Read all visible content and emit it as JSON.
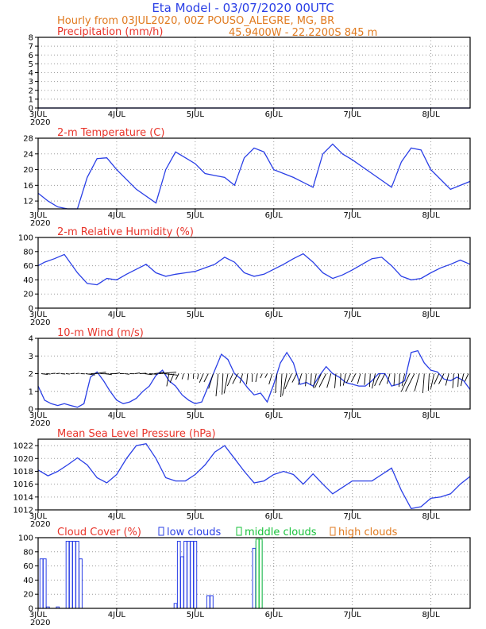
{
  "header": {
    "title": "Eta Model - 03/07/2020 00UTC",
    "subtitle": "Hourly from 03JUL2020, 00Z  POUSO_ALEGRE, MG, BR",
    "location": "45.9400W - 22.2200S    845  m"
  },
  "colors": {
    "title": "#2a3fe6",
    "info": "#e07a1f",
    "panel_title": "#e8342a",
    "series": "#2a3fe6",
    "wind_barb": "#000000",
    "low_clouds": "#2a3fe6",
    "middle_clouds": "#17c23a",
    "high_clouds": "#e07a1f"
  },
  "x_axis": {
    "days": [
      "3JUL",
      "4JUL",
      "5JUL",
      "6JUL",
      "7JUL",
      "8JUL"
    ],
    "year_label": "2020",
    "range_hours": [
      0,
      132
    ]
  },
  "chart_data": [
    {
      "type": "line",
      "title": "Precipitation (mm/h)",
      "ylim": [
        0,
        8
      ],
      "yticks": [
        0,
        1,
        2,
        3,
        4,
        5,
        6,
        7,
        8
      ],
      "x": [
        0,
        132
      ],
      "values": [
        0,
        0
      ]
    },
    {
      "type": "line",
      "title": "2-m Temperature (C)",
      "ylim": [
        10,
        28
      ],
      "yticks": [
        12,
        16,
        20,
        24,
        28
      ],
      "x": [
        0,
        3,
        6,
        9,
        12,
        15,
        18,
        21,
        24,
        30,
        36,
        39,
        42,
        45,
        48,
        51,
        54,
        57,
        60,
        63,
        66,
        69,
        72,
        78,
        84,
        87,
        90,
        93,
        96,
        102,
        108,
        111,
        114,
        117,
        120,
        126,
        132
      ],
      "values": [
        14,
        12,
        10.5,
        10,
        10,
        18,
        22.8,
        23,
        20,
        15,
        11.5,
        20,
        24.5,
        23,
        21.5,
        19,
        18.5,
        18,
        16,
        23,
        25.5,
        24.5,
        20,
        18,
        15.5,
        24,
        26.5,
        24,
        22.5,
        19,
        15.5,
        22,
        25.5,
        25,
        20,
        15,
        17
      ]
    },
    {
      "type": "line",
      "title": "2-m Relative Humidity (%)",
      "ylim": [
        0,
        100
      ],
      "yticks": [
        0,
        20,
        40,
        60,
        80,
        100
      ],
      "x": [
        0,
        2,
        5,
        8,
        12,
        15,
        18,
        21,
        24,
        27,
        30,
        33,
        36,
        39,
        42,
        45,
        48,
        51,
        54,
        57,
        60,
        63,
        66,
        69,
        72,
        75,
        78,
        81,
        84,
        87,
        90,
        93,
        96,
        99,
        102,
        105,
        108,
        111,
        114,
        117,
        120,
        123,
        126,
        129,
        132
      ],
      "values": [
        60,
        65,
        70,
        76,
        50,
        35,
        33,
        42,
        40,
        48,
        55,
        62,
        50,
        45,
        48,
        50,
        52,
        57,
        62,
        72,
        65,
        50,
        45,
        48,
        55,
        62,
        70,
        77,
        65,
        50,
        42,
        47,
        54,
        62,
        70,
        72,
        60,
        45,
        40,
        42,
        50,
        57,
        62,
        68,
        62
      ]
    },
    {
      "type": "line",
      "title": "10-m Wind (m/s)",
      "ylim": [
        0,
        4
      ],
      "yticks": [
        0,
        1,
        2,
        3,
        4
      ],
      "x": [
        0,
        1,
        2,
        4,
        6,
        8,
        10,
        12,
        14,
        16,
        18,
        20,
        22,
        24,
        26,
        28,
        30,
        32,
        34,
        36,
        38,
        40,
        42,
        44,
        46,
        48,
        50,
        52,
        54,
        56,
        58,
        60,
        62,
        64,
        66,
        68,
        70,
        72,
        74,
        76,
        78,
        80,
        82,
        84,
        86,
        88,
        90,
        92,
        94,
        96,
        98,
        100,
        102,
        104,
        106,
        108,
        110,
        112,
        114,
        116,
        118,
        120,
        122,
        124,
        126,
        128,
        130,
        132
      ],
      "values": [
        1.3,
        0.9,
        0.5,
        0.3,
        0.2,
        0.3,
        0.2,
        0.1,
        0.3,
        1.8,
        2.1,
        1.6,
        1.0,
        0.5,
        0.3,
        0.4,
        0.6,
        1.0,
        1.3,
        1.9,
        2.2,
        1.6,
        1.3,
        0.8,
        0.5,
        0.3,
        0.4,
        1.3,
        2.2,
        3.1,
        2.8,
        2.0,
        1.7,
        1.2,
        0.8,
        0.9,
        0.4,
        1.4,
        2.6,
        3.2,
        2.6,
        1.4,
        1.5,
        1.3,
        1.9,
        2.4,
        2.0,
        1.8,
        1.5,
        1.4,
        1.3,
        1.3,
        1.6,
        2.0,
        2.0,
        1.3,
        1.4,
        1.6,
        3.2,
        3.3,
        2.6,
        2.2,
        2.1,
        1.7,
        1.6,
        1.8,
        1.6,
        1.1
      ]
    },
    {
      "type": "line",
      "title": "Mean Sea Level Pressure (hPa)",
      "ylim": [
        1012,
        1023
      ],
      "yticks": [
        1012,
        1014,
        1016,
        1018,
        1020,
        1022
      ],
      "x": [
        0,
        3,
        6,
        9,
        12,
        15,
        18,
        21,
        24,
        27,
        30,
        33,
        36,
        39,
        42,
        45,
        48,
        51,
        54,
        57,
        60,
        63,
        66,
        69,
        72,
        75,
        78,
        81,
        84,
        87,
        90,
        93,
        96,
        99,
        102,
        105,
        108,
        111,
        114,
        117,
        120,
        123,
        126,
        129,
        132
      ],
      "values": [
        1018.2,
        1017.3,
        1018,
        1019,
        1020.1,
        1019,
        1017,
        1016.2,
        1017.5,
        1020,
        1022,
        1022.3,
        1020,
        1017,
        1016.5,
        1016.5,
        1017.5,
        1019,
        1021,
        1022,
        1020,
        1018,
        1016.2,
        1016.5,
        1017.5,
        1018,
        1017.5,
        1016,
        1017.6,
        1016,
        1014.5,
        1015.5,
        1016.5,
        1016.5,
        1016.5,
        1017.5,
        1018.5,
        1015,
        1012.2,
        1012.5,
        1013.8,
        1014,
        1014.5,
        1016,
        1017.2
      ]
    },
    {
      "type": "bar",
      "title": "Cloud Cover (%)",
      "ylim": [
        0,
        100
      ],
      "yticks": [
        0,
        20,
        40,
        60,
        80,
        100
      ],
      "legend": [
        "low clouds",
        "middle clouds",
        "high clouds"
      ],
      "series": [
        {
          "name": "low clouds",
          "x": [
            1,
            2,
            3,
            6,
            9,
            10,
            11,
            12,
            13,
            42,
            43,
            44,
            45,
            46,
            47,
            48,
            52,
            53,
            66,
            67,
            68
          ],
          "values": [
            70,
            70,
            2,
            2,
            95,
            95,
            95,
            95,
            70,
            7,
            95,
            73,
            95,
            95,
            95,
            95,
            18,
            18,
            85,
            95,
            95
          ]
        },
        {
          "name": "middle clouds",
          "x": [
            67,
            68
          ],
          "values": [
            98,
            98
          ]
        },
        {
          "name": "high clouds",
          "x": [],
          "values": []
        }
      ]
    }
  ]
}
